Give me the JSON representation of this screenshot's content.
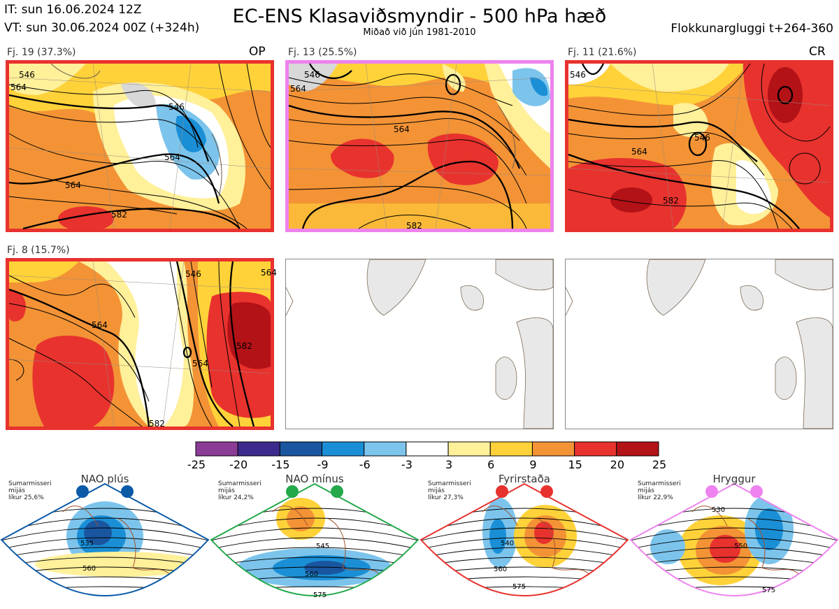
{
  "header": {
    "it": "IT: sun 16.06.2024 12Z",
    "vt": "VT: sun 30.06.2024 00Z  (+324h)",
    "title": "EC-ENS Klasaviðsmyndir - 500 hPa hæð",
    "subtitle": "Miðað við jún 1981-2010",
    "window": "Flokkunargluggi t+264-360"
  },
  "panels": [
    {
      "label": "Fj. 19 (37.3%)",
      "tag": "OP",
      "border": "#e8322e"
    },
    {
      "label": "Fj. 13 (25.5%)",
      "tag": "",
      "border": "#ee82ee"
    },
    {
      "label": "Fj. 11 (21.6%)",
      "tag": "CR",
      "border": "#e8322e"
    },
    {
      "label": "Fj. 8 (15.7%)",
      "tag": "",
      "border": "#e8322e"
    },
    {
      "label": "",
      "tag": "",
      "border": ""
    },
    {
      "label": "",
      "tag": "",
      "border": ""
    }
  ],
  "contour_labels": {
    "p1": [
      "546",
      "564",
      "564",
      "582",
      "564",
      "546"
    ],
    "p2": [
      "546",
      "564",
      "564",
      "582"
    ],
    "p3": [
      "546",
      "564",
      "582",
      "546"
    ],
    "p4": [
      "546",
      "564",
      "564",
      "582",
      "582",
      "564"
    ]
  },
  "colorbar": {
    "ticks": [
      "-25",
      "-20",
      "-15",
      "-9",
      "-6",
      "-3",
      "3",
      "6",
      "9",
      "15",
      "20",
      "25"
    ],
    "colors": [
      "#8b3d96",
      "#3d2a8c",
      "#1a56a0",
      "#1b8fd6",
      "#7cc4ec",
      "#ffffff",
      "#fff09a",
      "#ffd23a",
      "#f39336",
      "#e8322e",
      "#b31217"
    ]
  },
  "regimes": [
    {
      "title": "NAO plús",
      "desc": "Sumarmisseri\nmijás\nlíkur 25,6%",
      "color": "#0b5aa8",
      "labels": [
        "535",
        "560"
      ]
    },
    {
      "title": "NAO mínus",
      "desc": "Sumarmisseri\nmijás\nlíkur 24,2%",
      "color": "#23a84a",
      "labels": [
        "545",
        "560",
        "575"
      ]
    },
    {
      "title": "Fyrirstaða",
      "desc": "Sumarmisseri\nmijás\nlíkur 27,3%",
      "color": "#e8322e",
      "labels": [
        "540",
        "560",
        "575"
      ]
    },
    {
      "title": "Hryggur",
      "desc": "Sumarmisseri\nmijás\nlíkur 22,9%",
      "color": "#ee82ee",
      "labels": [
        "530",
        "550",
        "575"
      ]
    }
  ]
}
